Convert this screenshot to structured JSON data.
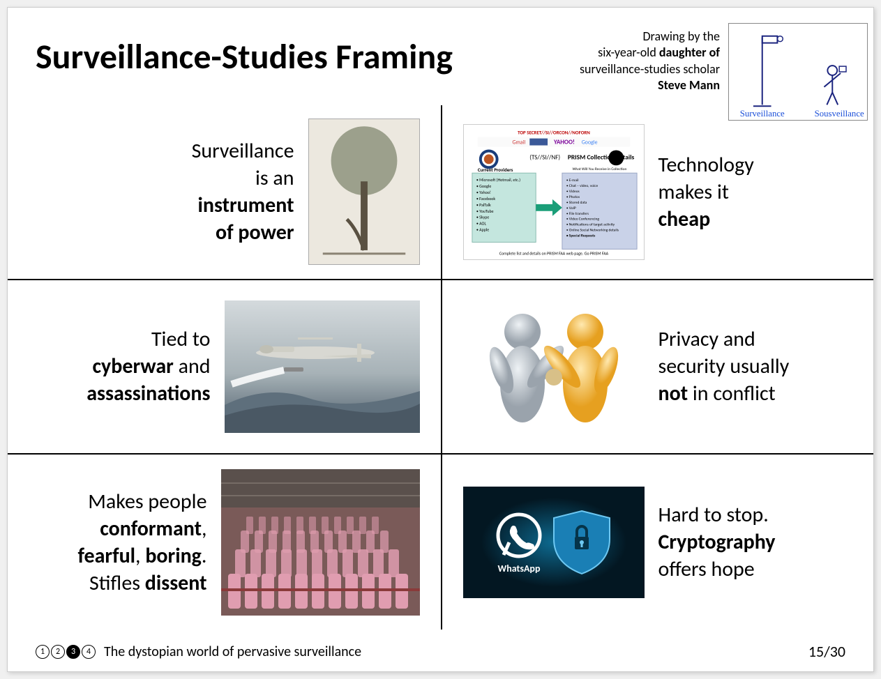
{
  "title": "Surveillance-Studies Framing",
  "caption": {
    "line1": "Drawing by the",
    "line2_a": "six-year-old ",
    "line2_b": "daughter of",
    "line3": "surveillance-studies scholar",
    "line4": "Steve Mann"
  },
  "sketch": {
    "label_left": "Surveillance",
    "label_right": "Sousveillance",
    "pole_color": "#1a237e",
    "figure_color": "#1a237e",
    "label_color": "#1a4ed8",
    "label_fontsize": 12
  },
  "cells": {
    "r1c1": {
      "pre": "Surveillance<br>is an",
      "bold1": "instrument<br>of power"
    },
    "r1c2": {
      "pre": "Technology<br>makes it",
      "bold1": "cheap"
    },
    "r2c1": {
      "pre": "Tied to",
      "bold1": "cyberwar",
      "mid": " and",
      "bold2": "assassinations"
    },
    "r2c2": {
      "pre": "Privacy and<br>security usually",
      "bold1": "not",
      "post": " in conflict"
    },
    "r3c1": {
      "pre": "Makes people",
      "bold1": "conformant",
      "mid1": ",",
      "bold2": "fearful",
      "mid2": ", ",
      "bold3": "boring",
      "post1": ".<br>Stifles ",
      "bold4": "dissent"
    },
    "r3c2": {
      "pre": "Hard to stop.",
      "bold1": "Cryptography",
      "post": "offers hope"
    }
  },
  "images": {
    "prism_title": "PRISM Collection Details",
    "prism_sub": "Current Providers",
    "prism_providers": [
      "Microsoft (Hotmail, etc.)",
      "Google",
      "Yahoo!",
      "Facebook",
      "PalTalk",
      "YouTube",
      "Skype",
      "AOL",
      "Apple"
    ],
    "prism_header_text": "What Will You Receive in Collection (Surveillance and Stored Comms)? It varies by provider. In general:",
    "prism_items": [
      "E-mail",
      "Chat – video, voice",
      "Videos",
      "Photos",
      "Stored data",
      "VoIP",
      "File transfers",
      "Video Conferencing",
      "Notifications of target activity – logins, etc.",
      "Online Social Networking details",
      "Special Requests"
    ],
    "whatsapp_label": "WhatsApp"
  },
  "footer": {
    "section_title": "The dystopian world of pervasive surveillance",
    "nav": [
      "1",
      "2",
      "3",
      "4"
    ],
    "active_index": 2,
    "page": "15/30"
  },
  "colors": {
    "text": "#000000",
    "border": "#000000",
    "background": "#ffffff",
    "crypto_bg_inner": "#0b5a7a",
    "crypto_bg_outer": "#041f2c",
    "crypto_icon": "#ffffff",
    "drone_sky": "#cdd5d8",
    "drone_mountain": "#5a6b78",
    "figure_silver": "#b8c0c8",
    "figure_gold": "#f4b840"
  },
  "fontsize": {
    "title": 50,
    "cell": 30,
    "caption": 18,
    "footer": 20,
    "page": 22
  }
}
